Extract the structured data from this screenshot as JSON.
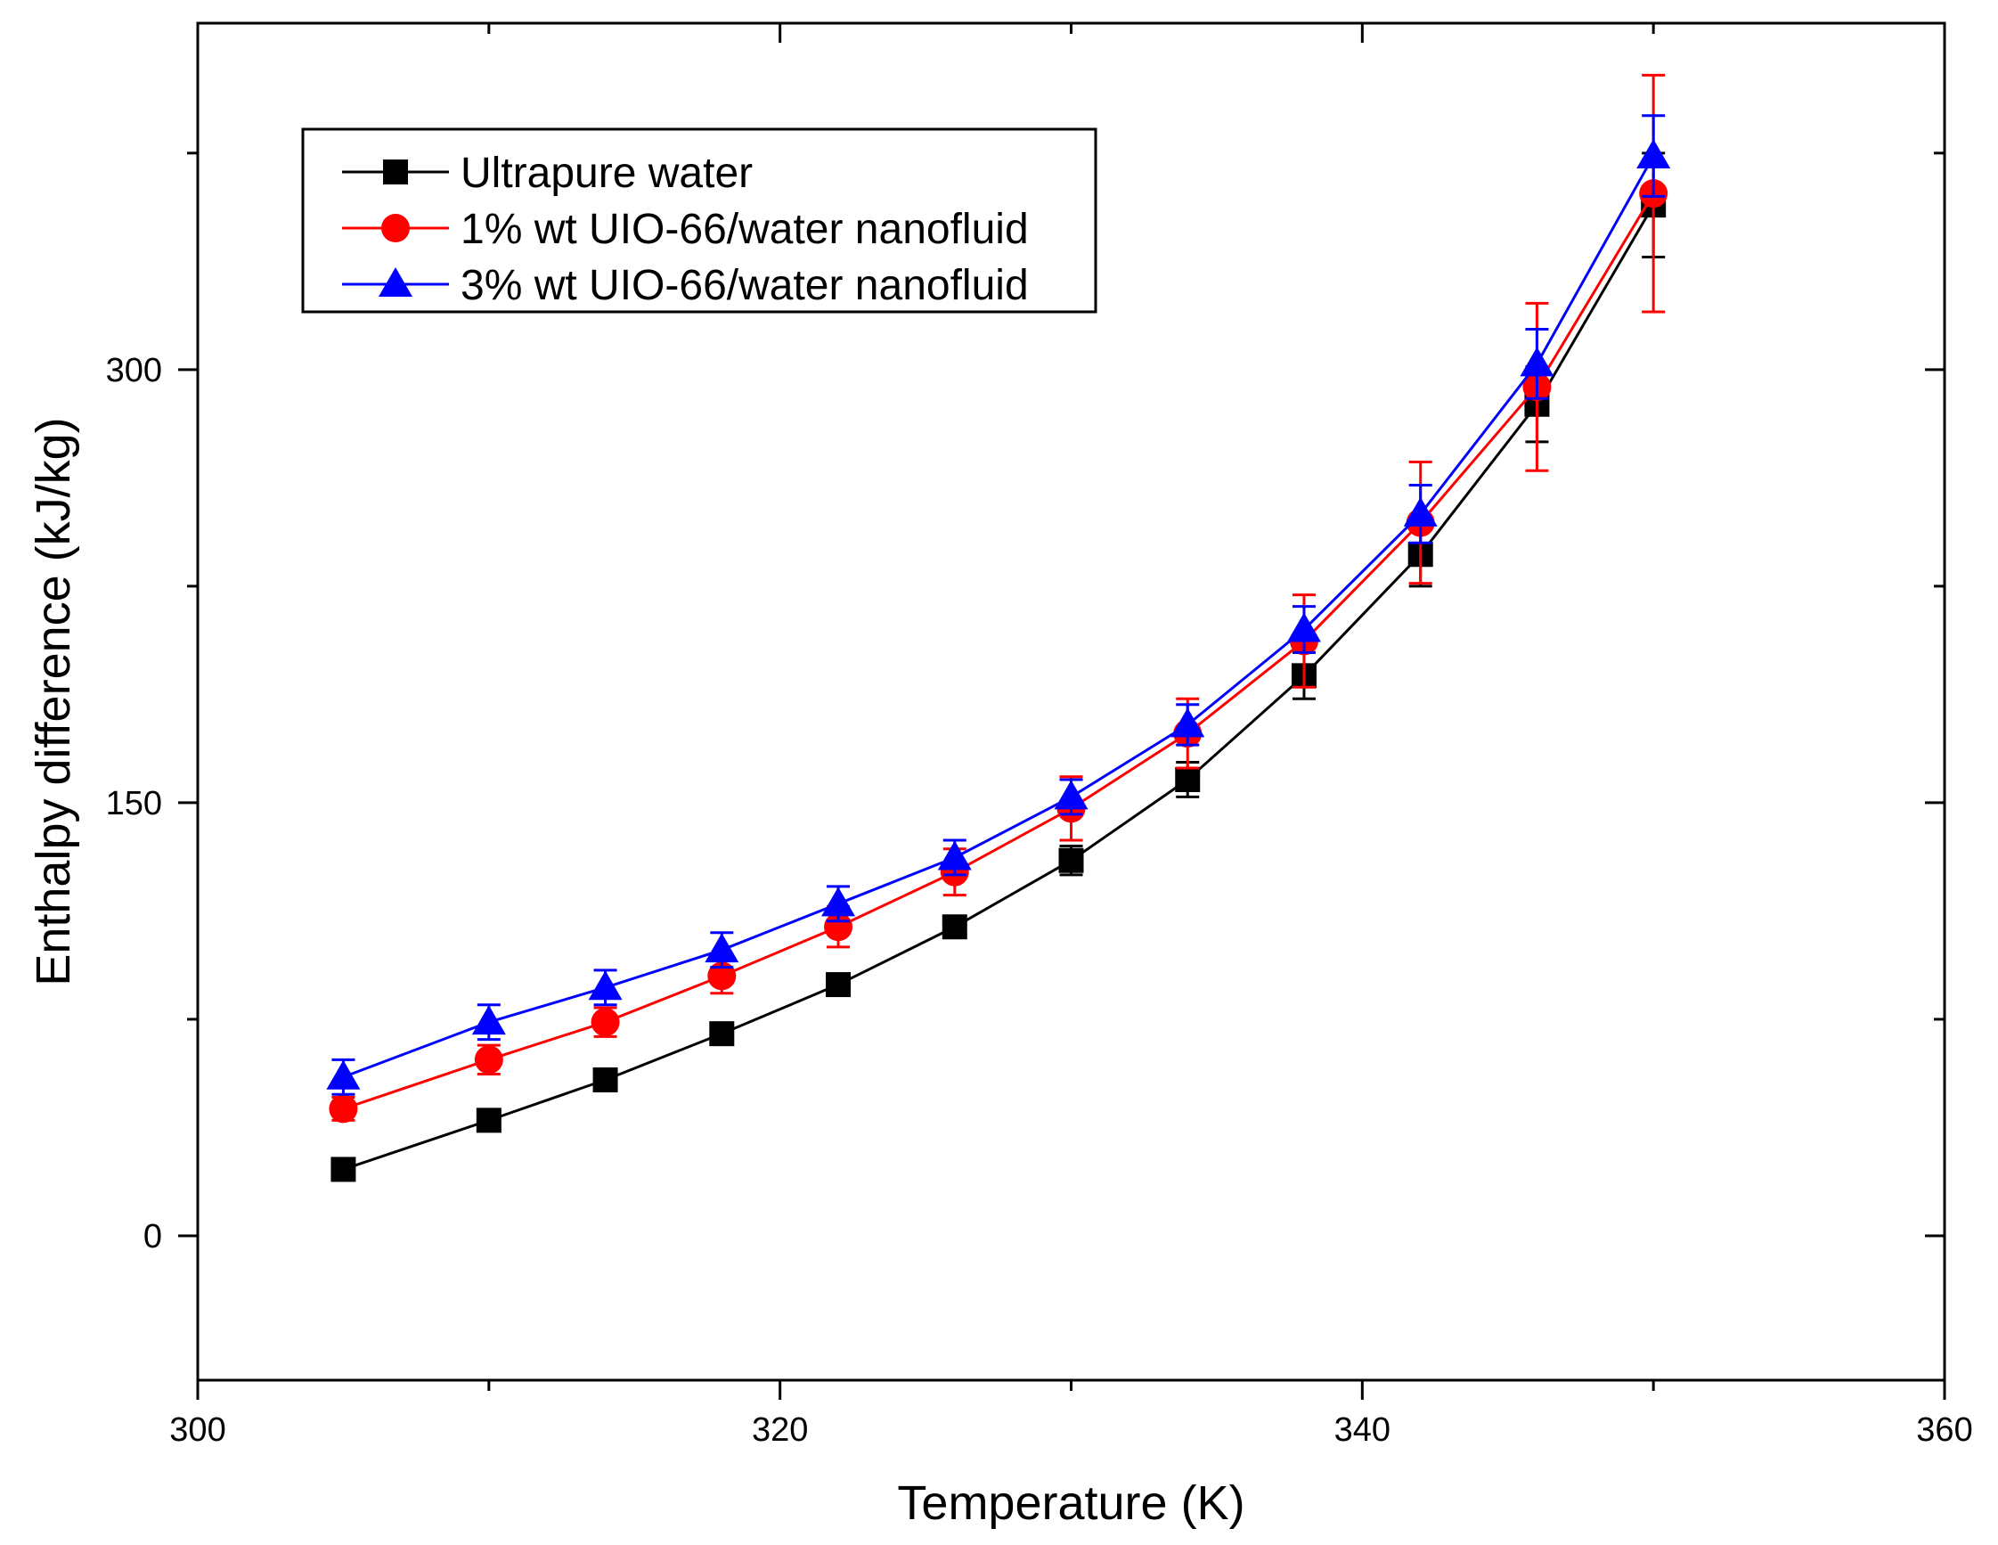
{
  "chart_data": {
    "type": "line",
    "title": "",
    "xlabel": "Temperature (K)",
    "ylabel": "Enthalpy difference (kJ/kg)",
    "xlim": [
      300,
      360
    ],
    "ylim": [
      -50,
      420
    ],
    "xticks": [
      300,
      320,
      340,
      360
    ],
    "yticks": [
      0,
      150,
      300
    ],
    "xtick_labels": [
      "300",
      "320",
      "340",
      "360"
    ],
    "ytick_labels": [
      "0",
      "150",
      "300"
    ],
    "legend_position": "top-left",
    "series": [
      {
        "name": "Ultrapure water",
        "color": "#000000",
        "marker": "square",
        "x": [
          305,
          310,
          314,
          318,
          322,
          326,
          330,
          334,
          338,
          342,
          346,
          350
        ],
        "y": [
          23,
          40,
          54,
          70,
          87,
          107,
          130,
          158,
          194,
          236,
          288,
          357
        ],
        "err": [
          2,
          2,
          2,
          2,
          2,
          3,
          5,
          6,
          8,
          11,
          13,
          18
        ]
      },
      {
        "name": "1% wt UIO-66/water nanofluid",
        "color": "#ff0000",
        "marker": "circle",
        "x": [
          305,
          310,
          314,
          318,
          322,
          326,
          330,
          334,
          338,
          342,
          346,
          350
        ],
        "y": [
          44,
          61,
          74,
          90,
          107,
          126,
          148,
          174,
          206,
          247,
          294,
          361
        ],
        "err": [
          4,
          5,
          5,
          6,
          7,
          8,
          11,
          12,
          16,
          21,
          29,
          41
        ]
      },
      {
        "name": "3% wt UIO-66/water nanofluid",
        "color": "#0000ff",
        "marker": "triangle",
        "x": [
          305,
          310,
          314,
          318,
          322,
          326,
          330,
          334,
          338,
          342,
          346,
          350
        ],
        "y": [
          55,
          74,
          86,
          99,
          115,
          131,
          152,
          177,
          210,
          250,
          302,
          374
        ],
        "err": [
          6,
          6,
          6,
          6,
          6,
          6,
          6,
          7,
          8,
          10,
          12,
          14
        ]
      }
    ]
  }
}
